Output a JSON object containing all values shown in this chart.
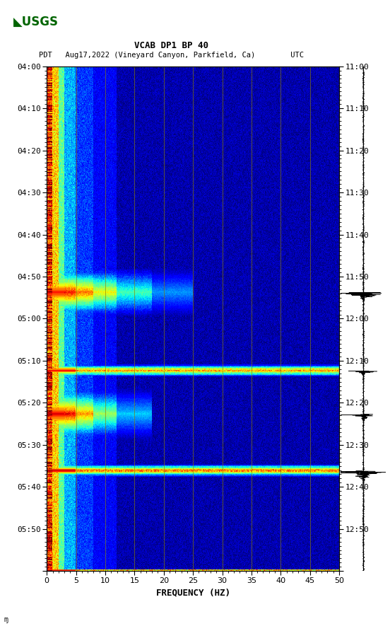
{
  "title_line1": "VCAB DP1 BP 40",
  "title_line2": "PDT   Aug17,2022 (Vineyard Canyon, Parkfield, Ca)        UTC",
  "xlabel": "FREQUENCY (HZ)",
  "freq_min": 0,
  "freq_max": 50,
  "background_color": "#ffffff",
  "grid_color": "#8B8000",
  "time_ticks_pdt": [
    "04:00",
    "04:10",
    "04:20",
    "04:30",
    "04:40",
    "04:50",
    "05:00",
    "05:10",
    "05:20",
    "05:30",
    "05:40",
    "05:50"
  ],
  "time_ticks_utc": [
    "11:00",
    "11:10",
    "11:20",
    "11:30",
    "11:40",
    "11:50",
    "12:00",
    "12:10",
    "12:20",
    "12:30",
    "12:40",
    "12:50"
  ],
  "usgs_green": "#006400",
  "n_time": 600,
  "n_freq": 500,
  "total_minutes": 116
}
